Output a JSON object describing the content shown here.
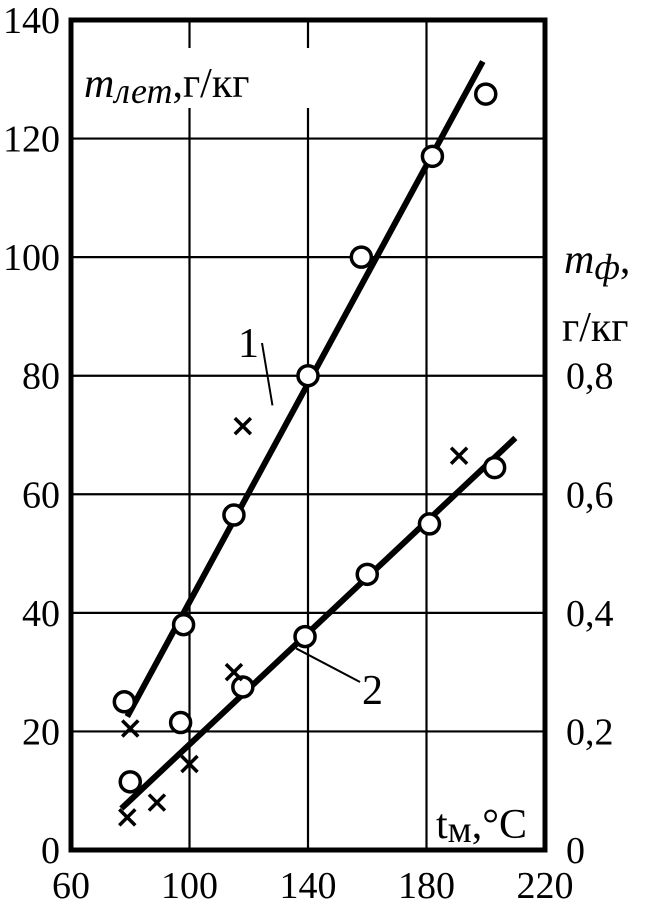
{
  "chart_data": {
    "type": "scatter",
    "x_axis": {
      "range": [
        60,
        220
      ],
      "ticks": [
        60,
        100,
        140,
        180,
        220
      ],
      "tick_labels": [
        "60",
        "100",
        "140",
        "180",
        "220"
      ],
      "label_main": "t",
      "label_sub": "м",
      "label_unit": ",°C"
    },
    "y_axis_left": {
      "range": [
        0,
        140
      ],
      "ticks": [
        0,
        20,
        40,
        60,
        80,
        100,
        120,
        140
      ],
      "tick_labels": [
        "0",
        "20",
        "40",
        "60",
        "80",
        "100",
        "120",
        "140"
      ],
      "label_main": "m",
      "label_sub": "лет",
      "label_unit": ",г/кг"
    },
    "y_axis_right": {
      "range": [
        0,
        1.4
      ],
      "ticks": [
        0,
        0.2,
        0.4,
        0.6,
        0.8
      ],
      "tick_labels": [
        "0",
        "0,2",
        "0,4",
        "0,6",
        "0,8"
      ],
      "label_main": "m",
      "label_sub": "ф",
      "label_unit1": ",",
      "label_unit2": "г/кг"
    },
    "grid": true,
    "series": [
      {
        "label": "1",
        "axis": "left",
        "circles": [
          [
            78,
            25
          ],
          [
            98,
            38
          ],
          [
            115,
            56.5
          ],
          [
            140,
            80
          ],
          [
            158,
            100
          ],
          [
            182,
            117
          ],
          [
            200,
            127.5
          ]
        ],
        "crosses": [
          [
            80,
            20.5
          ],
          [
            118,
            71.5
          ]
        ],
        "fit_line": [
          [
            79,
            22.5
          ],
          [
            199,
            133
          ]
        ]
      },
      {
        "label": "2",
        "axis": "right",
        "circles": [
          [
            80,
            0.115
          ],
          [
            97,
            0.215
          ],
          [
            118,
            0.275
          ],
          [
            139,
            0.36
          ],
          [
            160,
            0.465
          ],
          [
            181,
            0.55
          ],
          [
            203,
            0.645
          ]
        ],
        "crosses": [
          [
            79,
            0.055
          ],
          [
            89,
            0.08
          ],
          [
            100,
            0.145
          ],
          [
            115,
            0.3
          ],
          [
            191,
            0.665
          ]
        ],
        "fit_line": [
          [
            77,
            0.07
          ],
          [
            210,
            0.695
          ]
        ]
      }
    ],
    "annotations": [
      {
        "text": "1",
        "points_to": [
          128,
          75
        ]
      },
      {
        "text": "2",
        "points_to": [
          136,
          0.34
        ]
      }
    ]
  }
}
